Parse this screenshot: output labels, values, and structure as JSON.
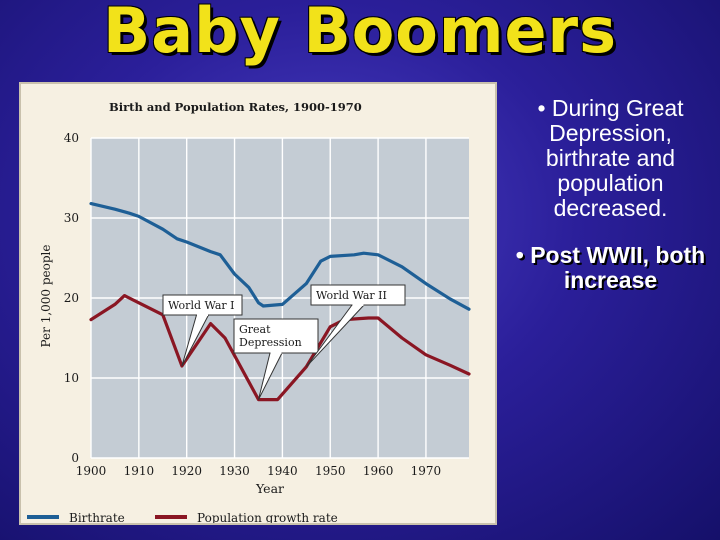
{
  "slide": {
    "title": "Baby Boomers"
  },
  "bullets": [
    "• During Great Depression, birthrate and population decreased.",
    "• Post WWII, both increase"
  ],
  "colors": {
    "birthrate": "#1e5f96",
    "population": "#8a1623",
    "plot_bg": "#c4ccd4",
    "title_yellow": "#f2e21a"
  },
  "chart_data": {
    "type": "line",
    "title": "Birth and Population Rates, 1900-1970",
    "xlabel": "Year",
    "ylabel": "Per 1,000 people",
    "xlim": [
      1900,
      1979
    ],
    "ylim": [
      0,
      40
    ],
    "x_ticks": [
      1900,
      1910,
      1920,
      1930,
      1940,
      1950,
      1960,
      1970
    ],
    "y_ticks": [
      0,
      10,
      20,
      30,
      40
    ],
    "grid": true,
    "legend_position": "bottom",
    "series": [
      {
        "name": "Birthrate",
        "color": "#1e5f96",
        "points": [
          [
            1900,
            31.8
          ],
          [
            1905,
            31.1
          ],
          [
            1908,
            30.6
          ],
          [
            1910,
            30.2
          ],
          [
            1915,
            28.6
          ],
          [
            1918,
            27.4
          ],
          [
            1920,
            27.0
          ],
          [
            1925,
            25.8
          ],
          [
            1927,
            25.4
          ],
          [
            1930,
            23.0
          ],
          [
            1933,
            21.3
          ],
          [
            1935,
            19.4
          ],
          [
            1936,
            19.0
          ],
          [
            1940,
            19.2
          ],
          [
            1945,
            21.8
          ],
          [
            1948,
            24.6
          ],
          [
            1950,
            25.2
          ],
          [
            1955,
            25.4
          ],
          [
            1957,
            25.6
          ],
          [
            1960,
            25.4
          ],
          [
            1965,
            23.9
          ],
          [
            1970,
            21.8
          ],
          [
            1975,
            19.9
          ],
          [
            1979,
            18.6
          ]
        ]
      },
      {
        "name": "Population growth rate",
        "color": "#8a1623",
        "points": [
          [
            1900,
            17.3
          ],
          [
            1905,
            19.2
          ],
          [
            1907,
            20.3
          ],
          [
            1910,
            19.4
          ],
          [
            1915,
            17.9
          ],
          [
            1919,
            11.5
          ],
          [
            1925,
            16.8
          ],
          [
            1928,
            15.0
          ],
          [
            1935,
            7.3
          ],
          [
            1939,
            7.3
          ],
          [
            1945,
            11.4
          ],
          [
            1950,
            16.4
          ],
          [
            1953,
            17.3
          ],
          [
            1958,
            17.5
          ],
          [
            1960,
            17.5
          ],
          [
            1965,
            15.0
          ],
          [
            1970,
            12.9
          ],
          [
            1975,
            11.6
          ],
          [
            1979,
            10.5
          ]
        ]
      }
    ],
    "annotations": [
      {
        "label": "World War I",
        "x": 1919,
        "y": 11.5
      },
      {
        "label": "Great Depression",
        "x": 1935,
        "y": 7.3
      },
      {
        "label": "World War II",
        "x": 1945,
        "y": 11.4
      }
    ]
  }
}
